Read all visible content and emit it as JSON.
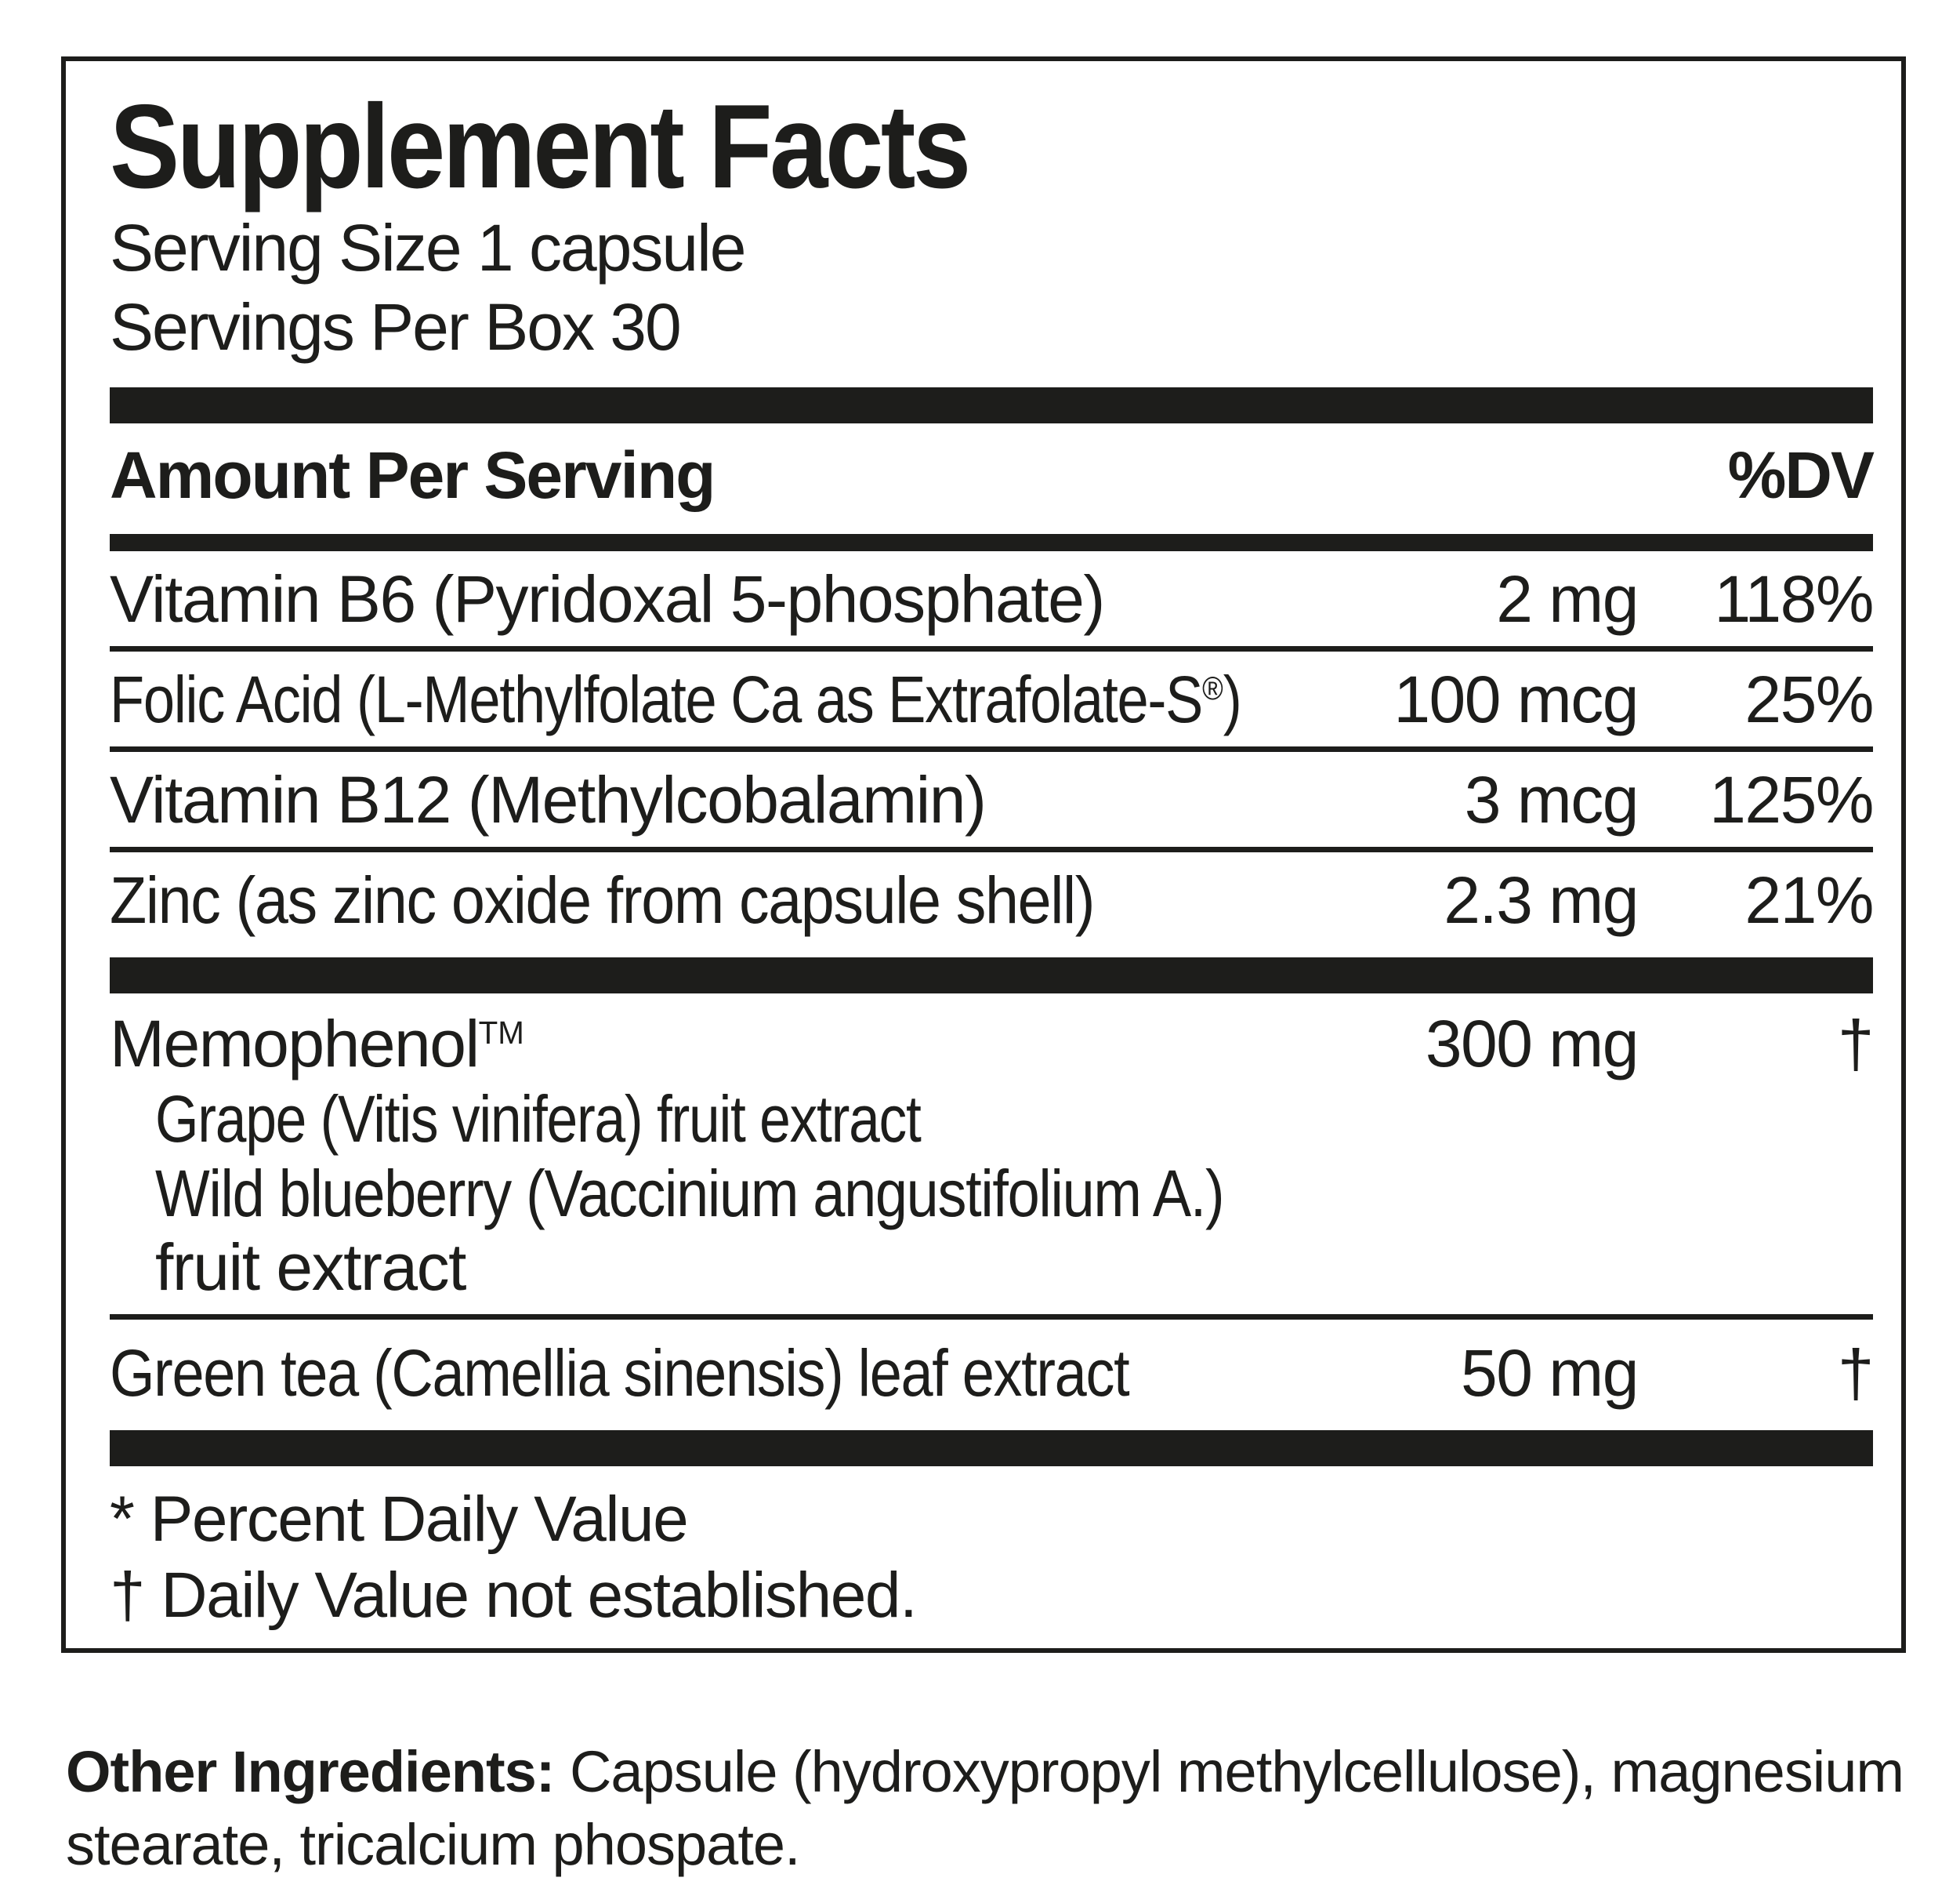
{
  "colors": {
    "ink": "#1d1d1b",
    "background": "#ffffff"
  },
  "panel": {
    "title": "Supplement Facts",
    "serving_size": "Serving Size 1 capsule",
    "servings_per_box": "Servings Per Box 30",
    "header": {
      "amount_per_serving": "Amount Per Serving",
      "dv": "%DV"
    },
    "rows": [
      {
        "name": "Vitamin B6 (Pyridoxal 5-phosphate)",
        "amount": "2 mg",
        "dv": "118%"
      },
      {
        "name": "Folic Acid (L-Methylfolate Ca as Extrafolate-S",
        "reg": "®",
        "close": ")",
        "amount": "100 mcg",
        "dv": "25%"
      },
      {
        "name": "Vitamin B12 (Methylcobalamin)",
        "amount": "3 mcg",
        "dv": "125%"
      },
      {
        "name": "Zinc (as zinc oxide from capsule shell)",
        "amount": "2.3 mg",
        "dv": "21%"
      }
    ],
    "blend": {
      "name": "Memophenol",
      "tm": "TM",
      "amount": "300 mg",
      "dv": "†",
      "sub_items": [
        "Grape (Vitis vinifera) fruit extract",
        "Wild blueberry (Vaccinium angustifolium A.)",
        "fruit extract"
      ]
    },
    "extra_row": {
      "name": "Green tea (Camellia sinensis) leaf extract",
      "amount": "50 mg",
      "dv": "†"
    },
    "footnotes": [
      "* Percent Daily Value",
      "† Daily Value not established."
    ]
  },
  "other_ingredients": {
    "label": "Other Ingredients:",
    "line1": "Capsule (hydroxypropyl methylcellulose), magnesium",
    "line2": "stearate, tricalcium phospate."
  }
}
